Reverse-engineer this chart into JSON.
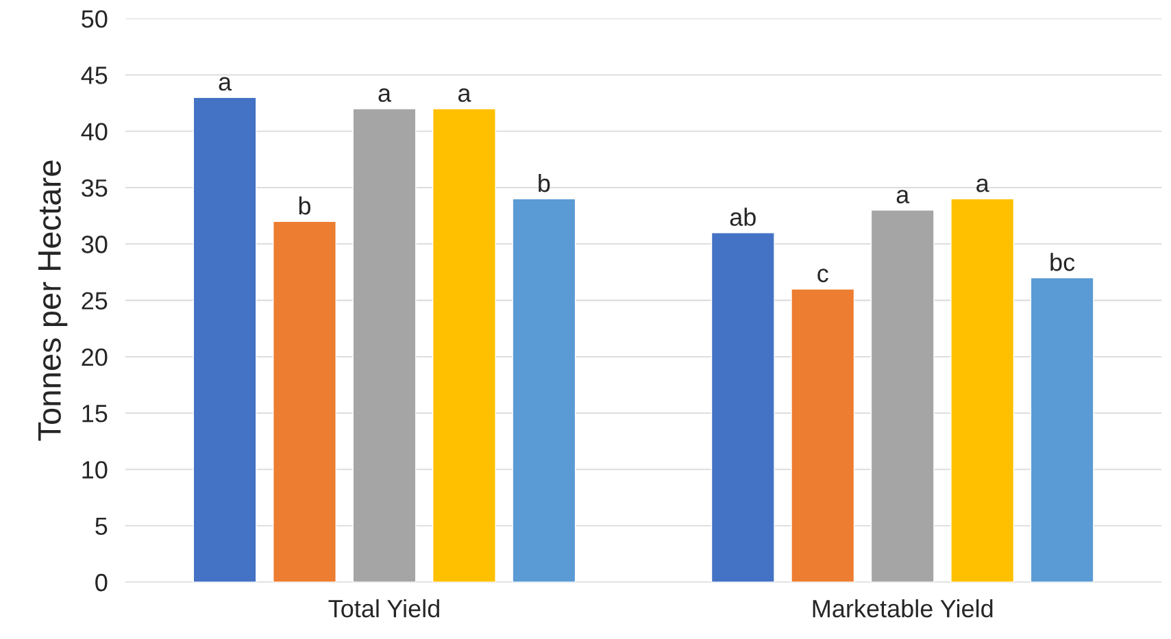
{
  "chart_data": {
    "type": "bar",
    "ylabel": "Tonnes per Hectare",
    "categories": [
      "Total Yield",
      "Marketable Yield"
    ],
    "series": [
      {
        "color": "#4472c4",
        "values": [
          43,
          31
        ],
        "value_labels": [
          "a",
          "ab"
        ]
      },
      {
        "color": "#ed7d31",
        "values": [
          32,
          26
        ],
        "value_labels": [
          "b",
          "c"
        ]
      },
      {
        "color": "#a5a5a5",
        "values": [
          42,
          33
        ],
        "value_labels": [
          "a",
          "a"
        ]
      },
      {
        "color": "#ffc000",
        "values": [
          42,
          34
        ],
        "value_labels": [
          "a",
          "a"
        ]
      },
      {
        "color": "#5b9bd5",
        "values": [
          34,
          27
        ],
        "value_labels": [
          "b",
          "bc"
        ]
      }
    ],
    "ylim": [
      0,
      50
    ],
    "yticks": [
      0,
      5,
      10,
      15,
      20,
      25,
      30,
      35,
      40,
      45,
      50
    ],
    "grid": "y",
    "legend": false
  }
}
